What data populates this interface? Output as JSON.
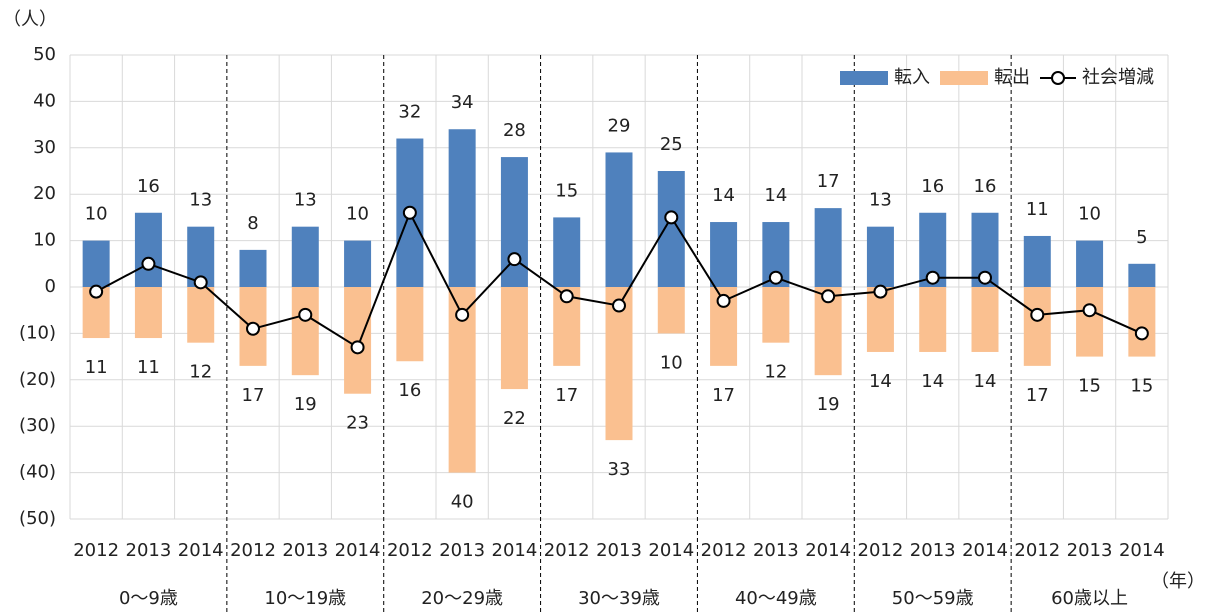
{
  "chart_data": {
    "type": "bar",
    "y_unit_label": "（人）",
    "x_unit_label": "（年）",
    "categories": [
      "2012",
      "2013",
      "2014",
      "2012",
      "2013",
      "2014",
      "2012",
      "2013",
      "2014",
      "2012",
      "2013",
      "2014",
      "2012",
      "2013",
      "2014",
      "2012",
      "2013",
      "2014",
      "2012",
      "2013",
      "2014"
    ],
    "groups": [
      "0〜9歳",
      "10〜19歳",
      "20〜29歳",
      "30〜39歳",
      "40〜49歳",
      "50〜59歳",
      "60歳以上"
    ],
    "series": [
      {
        "name": "転入",
        "type": "bar",
        "color": "#4f81bd",
        "values": [
          10,
          16,
          13,
          8,
          13,
          10,
          32,
          34,
          28,
          15,
          29,
          25,
          14,
          14,
          17,
          13,
          16,
          16,
          11,
          10,
          5
        ]
      },
      {
        "name": "転出",
        "type": "bar",
        "color": "#fac090",
        "values": [
          -11,
          -11,
          -12,
          -17,
          -19,
          -23,
          -16,
          -40,
          -22,
          -17,
          -33,
          -10,
          -17,
          -12,
          -19,
          -14,
          -14,
          -14,
          -17,
          -15,
          -15
        ],
        "value_labels": [
          "11",
          "11",
          "12",
          "17",
          "19",
          "23",
          "16",
          "40",
          "22",
          "17",
          "33",
          "10",
          "17",
          "12",
          "19",
          "14",
          "14",
          "14",
          "17",
          "15",
          "15"
        ]
      },
      {
        "name": "社会増減",
        "type": "line",
        "color": "#000000",
        "values": [
          -1,
          5,
          1,
          -9,
          -6,
          -13,
          16,
          -6,
          6,
          -2,
          -4,
          15,
          -3,
          2,
          -2,
          -1,
          2,
          2,
          -6,
          -5,
          -10
        ]
      }
    ],
    "ylim": [
      -50,
      50
    ],
    "yticks": [
      {
        "value": -50,
        "label": "(50)"
      },
      {
        "value": -40,
        "label": "(40)"
      },
      {
        "value": -30,
        "label": "(30)"
      },
      {
        "value": -20,
        "label": "(20)"
      },
      {
        "value": -10,
        "label": "(10)"
      },
      0,
      10,
      20,
      30,
      40,
      50
    ],
    "negative_tick_color": "#c00000",
    "grid": true,
    "legend": "top-right"
  }
}
